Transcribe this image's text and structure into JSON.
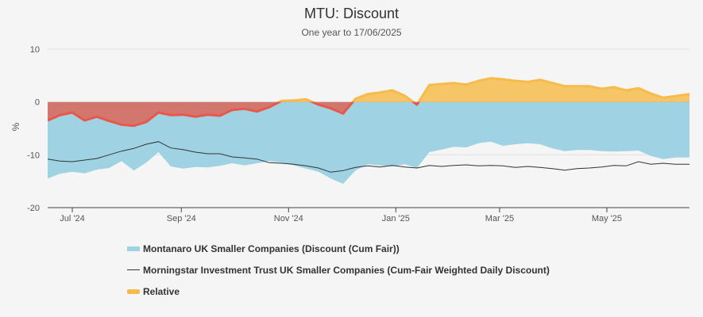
{
  "title": "MTU: Discount",
  "subtitle": "One year to 17/06/2025",
  "chart_data": {
    "type": "area",
    "ylabel": "%",
    "ylim": [
      -20,
      10
    ],
    "yticks": [
      10,
      0,
      -10,
      -20
    ],
    "x_range": [
      "2024-06-17",
      "2025-06-17"
    ],
    "xticks": [
      {
        "label": "Jul '24",
        "date": "2024-07-01"
      },
      {
        "label": "Sep '24",
        "date": "2024-09-01"
      },
      {
        "label": "Nov '24",
        "date": "2024-11-01"
      },
      {
        "label": "Jan '25",
        "date": "2025-01-01"
      },
      {
        "label": "Mar '25",
        "date": "2025-03-01"
      },
      {
        "label": "May '25",
        "date": "2025-05-01"
      }
    ],
    "grid": true,
    "legend_position": "bottom",
    "series": [
      {
        "name": "Montanaro UK Smaller Companies (Discount (Cum Fair))",
        "kind": "area",
        "color": "#9fd3e3",
        "points": [
          [
            "2024-06-17",
            -14.5
          ],
          [
            "2024-06-24",
            -13.6
          ],
          [
            "2024-07-01",
            -13.2
          ],
          [
            "2024-07-08",
            -13.5
          ],
          [
            "2024-07-15",
            -12.8
          ],
          [
            "2024-07-22",
            -12.5
          ],
          [
            "2024-07-29",
            -11.2
          ],
          [
            "2024-08-05",
            -13.0
          ],
          [
            "2024-08-12",
            -11.5
          ],
          [
            "2024-08-19",
            -9.5
          ],
          [
            "2024-08-26",
            -12.2
          ],
          [
            "2024-09-02",
            -12.6
          ],
          [
            "2024-09-09",
            -12.3
          ],
          [
            "2024-09-16",
            -12.4
          ],
          [
            "2024-09-23",
            -12.1
          ],
          [
            "2024-09-30",
            -11.6
          ],
          [
            "2024-10-07",
            -12.0
          ],
          [
            "2024-10-14",
            -11.6
          ],
          [
            "2024-10-21",
            -11.2
          ],
          [
            "2024-10-28",
            -11.5
          ],
          [
            "2024-11-04",
            -12.0
          ],
          [
            "2024-11-11",
            -12.6
          ],
          [
            "2024-11-18",
            -13.2
          ],
          [
            "2024-11-25",
            -14.5
          ],
          [
            "2024-12-02",
            -15.5
          ],
          [
            "2024-12-09",
            -13.0
          ],
          [
            "2024-12-16",
            -11.8
          ],
          [
            "2024-12-23",
            -12.0
          ],
          [
            "2024-12-30",
            -12.2
          ],
          [
            "2025-01-06",
            -11.8
          ],
          [
            "2025-01-13",
            -12.5
          ],
          [
            "2025-01-20",
            -9.5
          ],
          [
            "2025-01-27",
            -9.0
          ],
          [
            "2025-02-03",
            -8.5
          ],
          [
            "2025-02-10",
            -8.6
          ],
          [
            "2025-02-17",
            -7.8
          ],
          [
            "2025-02-24",
            -7.5
          ],
          [
            "2025-03-03",
            -8.3
          ],
          [
            "2025-03-10",
            -8.0
          ],
          [
            "2025-03-17",
            -7.8
          ],
          [
            "2025-03-24",
            -8.0
          ],
          [
            "2025-03-31",
            -8.8
          ],
          [
            "2025-04-07",
            -9.3
          ],
          [
            "2025-04-14",
            -9.1
          ],
          [
            "2025-04-21",
            -9.1
          ],
          [
            "2025-04-28",
            -9.3
          ],
          [
            "2025-05-05",
            -9.4
          ],
          [
            "2025-05-12",
            -9.3
          ],
          [
            "2025-05-19",
            -9.2
          ],
          [
            "2025-05-26",
            -10.2
          ],
          [
            "2025-06-02",
            -10.8
          ],
          [
            "2025-06-09",
            -10.5
          ],
          [
            "2025-06-17",
            -10.5
          ]
        ]
      },
      {
        "name": "Morningstar Investment Trust UK Smaller Companies (Cum-Fair Weighted Daily Discount)",
        "kind": "line",
        "color": "#333333",
        "points": [
          [
            "2024-06-17",
            -10.8
          ],
          [
            "2024-06-24",
            -11.2
          ],
          [
            "2024-07-01",
            -11.3
          ],
          [
            "2024-07-08",
            -11.0
          ],
          [
            "2024-07-15",
            -10.7
          ],
          [
            "2024-07-22",
            -10.0
          ],
          [
            "2024-07-29",
            -9.3
          ],
          [
            "2024-08-05",
            -8.8
          ],
          [
            "2024-08-12",
            -8.0
          ],
          [
            "2024-08-19",
            -7.5
          ],
          [
            "2024-08-26",
            -8.7
          ],
          [
            "2024-09-02",
            -9.0
          ],
          [
            "2024-09-09",
            -9.5
          ],
          [
            "2024-09-16",
            -9.8
          ],
          [
            "2024-09-23",
            -9.8
          ],
          [
            "2024-09-30",
            -10.4
          ],
          [
            "2024-10-07",
            -10.6
          ],
          [
            "2024-10-14",
            -10.8
          ],
          [
            "2024-10-21",
            -11.5
          ],
          [
            "2024-10-28",
            -11.6
          ],
          [
            "2024-11-04",
            -11.8
          ],
          [
            "2024-11-11",
            -12.1
          ],
          [
            "2024-11-18",
            -12.5
          ],
          [
            "2024-11-25",
            -13.3
          ],
          [
            "2024-12-02",
            -13.0
          ],
          [
            "2024-12-09",
            -12.4
          ],
          [
            "2024-12-16",
            -12.1
          ],
          [
            "2024-12-23",
            -12.3
          ],
          [
            "2024-12-30",
            -12.0
          ],
          [
            "2025-01-06",
            -12.3
          ],
          [
            "2025-01-13",
            -12.5
          ],
          [
            "2025-01-20",
            -12.0
          ],
          [
            "2025-01-27",
            -12.2
          ],
          [
            "2025-02-03",
            -12.0
          ],
          [
            "2025-02-10",
            -11.9
          ],
          [
            "2025-02-17",
            -12.1
          ],
          [
            "2025-02-24",
            -12.0
          ],
          [
            "2025-03-03",
            -12.1
          ],
          [
            "2025-03-10",
            -12.4
          ],
          [
            "2025-03-17",
            -12.2
          ],
          [
            "2025-03-24",
            -12.4
          ],
          [
            "2025-03-31",
            -12.6
          ],
          [
            "2025-04-07",
            -12.9
          ],
          [
            "2025-04-14",
            -12.6
          ],
          [
            "2025-04-21",
            -12.5
          ],
          [
            "2025-04-28",
            -12.3
          ],
          [
            "2025-05-05",
            -12.0
          ],
          [
            "2025-05-12",
            -12.1
          ],
          [
            "2025-05-19",
            -11.3
          ],
          [
            "2025-05-26",
            -11.8
          ],
          [
            "2025-06-02",
            -11.6
          ],
          [
            "2025-06-09",
            -11.8
          ],
          [
            "2025-06-17",
            -11.8
          ]
        ]
      },
      {
        "name": "Relative",
        "kind": "area",
        "positive_color": "#f5bc4c",
        "negative_color": "#e06050",
        "points": [
          [
            "2024-06-17",
            -3.5
          ],
          [
            "2024-06-24",
            -2.5
          ],
          [
            "2024-07-01",
            -2.0
          ],
          [
            "2024-07-08",
            -3.5
          ],
          [
            "2024-07-15",
            -2.8
          ],
          [
            "2024-07-22",
            -3.6
          ],
          [
            "2024-07-29",
            -4.3
          ],
          [
            "2024-08-05",
            -4.5
          ],
          [
            "2024-08-12",
            -3.8
          ],
          [
            "2024-08-19",
            -2.0
          ],
          [
            "2024-08-26",
            -2.5
          ],
          [
            "2024-09-02",
            -2.4
          ],
          [
            "2024-09-09",
            -2.8
          ],
          [
            "2024-09-16",
            -2.4
          ],
          [
            "2024-09-23",
            -2.6
          ],
          [
            "2024-09-30",
            -1.5
          ],
          [
            "2024-10-07",
            -1.3
          ],
          [
            "2024-10-14",
            -1.8
          ],
          [
            "2024-10-21",
            -1.0
          ],
          [
            "2024-10-28",
            0.2
          ],
          [
            "2024-11-04",
            0.3
          ],
          [
            "2024-11-11",
            0.5
          ],
          [
            "2024-11-18",
            -0.5
          ],
          [
            "2024-11-25",
            -1.2
          ],
          [
            "2024-12-02",
            -2.2
          ],
          [
            "2024-12-09",
            0.6
          ],
          [
            "2024-12-16",
            1.5
          ],
          [
            "2024-12-23",
            1.8
          ],
          [
            "2024-12-30",
            2.2
          ],
          [
            "2025-01-06",
            1.2
          ],
          [
            "2025-01-13",
            -0.5
          ],
          [
            "2025-01-20",
            3.2
          ],
          [
            "2025-01-27",
            3.4
          ],
          [
            "2025-02-03",
            3.6
          ],
          [
            "2025-02-10",
            3.3
          ],
          [
            "2025-02-17",
            4.0
          ],
          [
            "2025-02-24",
            4.5
          ],
          [
            "2025-03-03",
            4.3
          ],
          [
            "2025-03-10",
            4.0
          ],
          [
            "2025-03-17",
            3.8
          ],
          [
            "2025-03-24",
            4.2
          ],
          [
            "2025-03-31",
            3.6
          ],
          [
            "2025-04-07",
            3.0
          ],
          [
            "2025-04-14",
            3.0
          ],
          [
            "2025-04-21",
            3.0
          ],
          [
            "2025-04-28",
            2.5
          ],
          [
            "2025-05-05",
            2.8
          ],
          [
            "2025-05-12",
            2.2
          ],
          [
            "2025-05-19",
            2.6
          ],
          [
            "2025-05-26",
            1.6
          ],
          [
            "2025-06-02",
            0.8
          ],
          [
            "2025-06-09",
            1.1
          ],
          [
            "2025-06-17",
            1.5
          ]
        ]
      }
    ]
  }
}
